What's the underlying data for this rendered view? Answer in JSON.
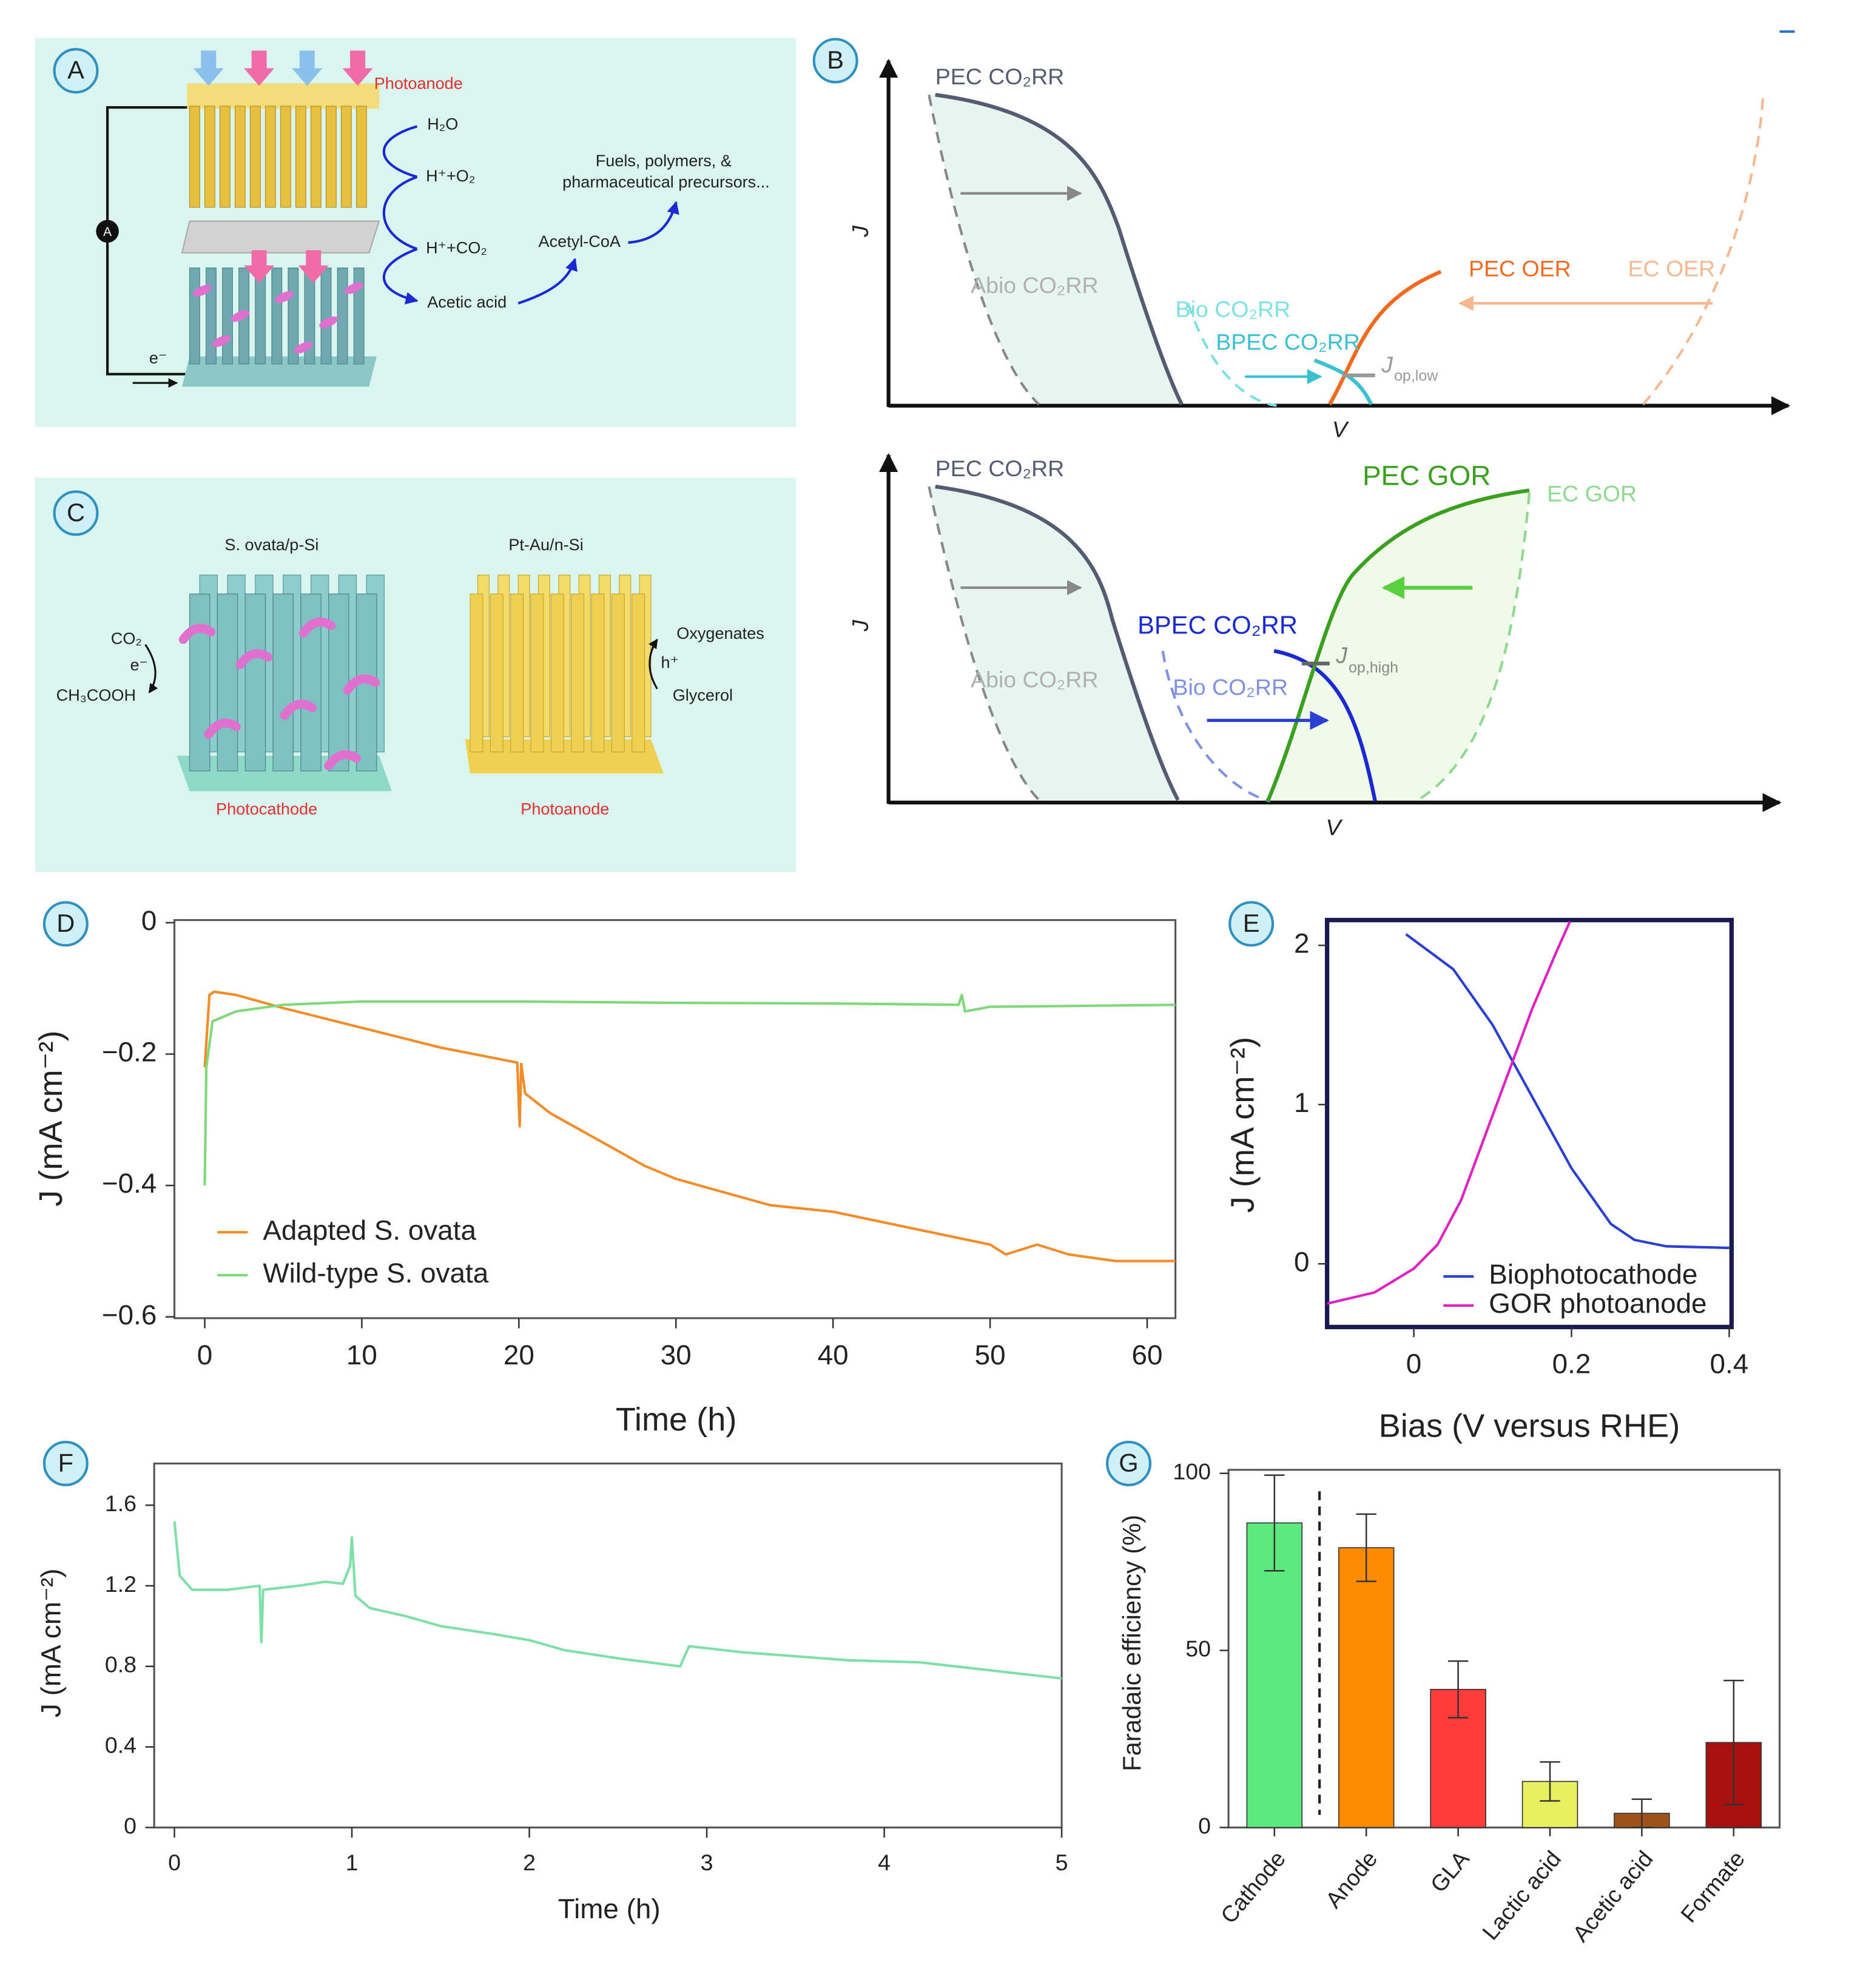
{
  "panels": {
    "A": {
      "label": "A",
      "photoanode": "Photoanode",
      "ammeter": "A",
      "electron": "e⁻",
      "steps": [
        "H₂O",
        "H⁺+O₂",
        "H⁺+CO₂",
        "Acetic acid"
      ],
      "intermediate": "Acetyl-CoA",
      "products": [
        "Fuels, polymers, &",
        "pharmaceutical precursors..."
      ]
    },
    "B": {
      "label": "B",
      "top": {
        "j": "J",
        "v": "V",
        "pec": "PEC CO₂RR",
        "abio": "Abio CO₂RR",
        "bio": "Bio CO₂RR",
        "bpec": "BPEC CO₂RR",
        "pec_oer": "PEC OER",
        "ec_oer": "EC OER",
        "jop": {
          "symbol": "J",
          "subscript": "op,low"
        }
      },
      "bottom": {
        "j": "J",
        "v": "V",
        "pec": "PEC CO₂RR",
        "abio": "Abio CO₂RR",
        "bio": "Bio CO₂RR",
        "bpec": "BPEC CO₂RR",
        "pec_gor": "PEC GOR",
        "ec_gor": "EC GOR",
        "jop": {
          "symbol": "J",
          "subscript": "op,high"
        }
      }
    },
    "C": {
      "label": "C",
      "cathode_title": "S. ovata/p-Si",
      "anode_title": "Pt-Au/n-Si",
      "cathode_reaction": [
        "CO₂",
        "e⁻",
        "CH₃COOH"
      ],
      "anode_reaction": [
        "Oxygenates",
        "h⁺",
        "Glycerol"
      ],
      "cathode": "Photocathode",
      "anode": "Photoanode"
    }
  },
  "chart_data": [
    {
      "type": "line",
      "label": "D",
      "x_label": "Time (h)",
      "y_label": "J (mA cm⁻²)",
      "xlim": [
        -1.93,
        61.8
      ],
      "ylim": [
        -0.602,
        0.004
      ],
      "xticks": [
        0,
        10,
        20,
        30,
        40,
        50,
        60
      ],
      "yticks": [
        0,
        {
          "value": -0.2,
          "label": "−0.2"
        },
        {
          "value": -0.4,
          "label": "−0.4"
        },
        {
          "value": -0.6,
          "label": "−0.6"
        }
      ],
      "series": [
        {
          "name": "Adapted S. ovata",
          "color": "#f28c28",
          "x": [
            0,
            0.3,
            0.6,
            2,
            5,
            10,
            15,
            19.9,
            20.05,
            20.15,
            20.4,
            22,
            25,
            28,
            30,
            33,
            36,
            40,
            43,
            46,
            50,
            51,
            53,
            55,
            58,
            62
          ],
          "values": [
            -0.22,
            -0.11,
            -0.105,
            -0.11,
            -0.13,
            -0.16,
            -0.19,
            -0.213,
            -0.31,
            -0.215,
            -0.26,
            -0.29,
            -0.33,
            -0.37,
            -0.39,
            -0.41,
            -0.43,
            -0.44,
            -0.455,
            -0.47,
            -0.49,
            -0.505,
            -0.49,
            -0.505,
            -0.515,
            -0.515
          ]
        },
        {
          "name": "Wild-type S. ovata",
          "color": "#7fd97a",
          "x": [
            0,
            0.1,
            0.5,
            2,
            5,
            10,
            20,
            30,
            40,
            48,
            48.2,
            48.4,
            50,
            62
          ],
          "values": [
            -0.4,
            -0.22,
            -0.15,
            -0.135,
            -0.125,
            -0.12,
            -0.12,
            -0.122,
            -0.123,
            -0.125,
            -0.11,
            -0.135,
            -0.128,
            -0.125
          ]
        }
      ]
    },
    {
      "type": "line",
      "label": "E",
      "x_label": "Bias (V versus RHE)",
      "y_label": "J (mA cm⁻²)",
      "xlim": [
        -0.11,
        0.403
      ],
      "ylim": [
        -0.397,
        2.159
      ],
      "xticks": [
        0,
        0.2,
        0.4
      ],
      "yticks": [
        0,
        1,
        2
      ],
      "series": [
        {
          "name": "Biophotocathode",
          "color": "#2b3fd0",
          "x": [
            -0.01,
            0.05,
            0.1,
            0.15,
            0.2,
            0.25,
            0.28,
            0.32,
            0.4
          ],
          "values": [
            2.07,
            1.85,
            1.5,
            1.05,
            0.6,
            0.25,
            0.15,
            0.11,
            0.1
          ]
        },
        {
          "name": "GOR photoanode",
          "color": "#e020c0",
          "x": [
            -0.11,
            -0.05,
            0,
            0.03,
            0.06,
            0.09,
            0.12,
            0.15,
            0.18,
            0.198
          ],
          "values": [
            -0.25,
            -0.18,
            -0.03,
            0.12,
            0.4,
            0.8,
            1.2,
            1.6,
            1.95,
            2.15
          ]
        }
      ]
    },
    {
      "type": "line",
      "label": "F",
      "x_label": "Time (h)",
      "y_label": "J (mA cm⁻²)",
      "xlim": [
        -0.114,
        5
      ],
      "ylim": [
        0,
        1.807
      ],
      "xticks": [
        0,
        1,
        2,
        3,
        4,
        5
      ],
      "yticks": [
        0,
        0.4,
        0.8,
        1.2,
        1.6
      ],
      "series": [
        {
          "color": "#7ee0a8",
          "x": [
            0,
            0.03,
            0.1,
            0.3,
            0.48,
            0.49,
            0.5,
            0.7,
            0.85,
            0.95,
            0.99,
            1.0,
            1.02,
            1.1,
            1.3,
            1.5,
            1.8,
            2.0,
            2.2,
            2.5,
            2.85,
            2.9,
            3.2,
            3.5,
            3.8,
            4.2,
            4.5,
            4.8,
            5
          ],
          "values": [
            1.52,
            1.25,
            1.18,
            1.18,
            1.2,
            0.92,
            1.18,
            1.2,
            1.22,
            1.21,
            1.3,
            1.44,
            1.15,
            1.09,
            1.05,
            1.0,
            0.96,
            0.93,
            0.88,
            0.84,
            0.8,
            0.9,
            0.87,
            0.85,
            0.83,
            0.82,
            0.79,
            0.76,
            0.74
          ]
        }
      ]
    },
    {
      "type": "bar",
      "label": "G",
      "y_label": "Faradaic efficiency (%)",
      "categories": [
        "Cathode",
        "Anode",
        "GLA",
        "Lactic acid",
        "Acetic acid",
        "Formate"
      ],
      "values": [
        86,
        79,
        39,
        13,
        4,
        24
      ],
      "errors": [
        13.5,
        9.5,
        8,
        5.5,
        4,
        17.5
      ],
      "colors": [
        "#5de87e",
        "#ff8c00",
        "#ff3b3b",
        "#e8f060",
        "#a0521a",
        "#a8100e"
      ],
      "ylim": [
        0,
        101
      ],
      "yticks": [
        0,
        50,
        100
      ]
    }
  ]
}
